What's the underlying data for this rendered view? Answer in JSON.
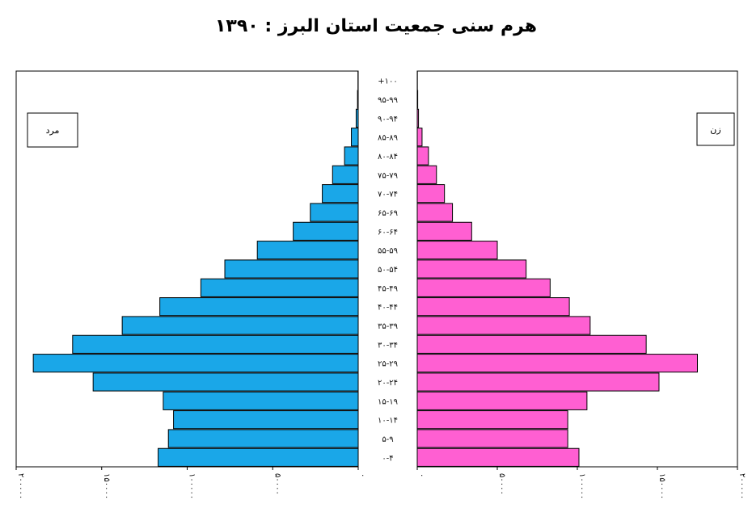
{
  "chart_data": {
    "type": "bar",
    "title": "هرم سنی جمعیت استان البرز : ۱۳۹۰",
    "categories": [
      "۰-۴",
      "۵-۹",
      "۱۰-۱۴",
      "۱۵-۱۹",
      "۲۰-۲۴",
      "۲۵-۲۹",
      "۳۰-۳۴",
      "۳۵-۳۹",
      "۴۰-۴۴",
      "۴۵-۴۹",
      "۵۰-۵۴",
      "۵۵-۵۹",
      "۶۰-۶۴",
      "۶۵-۶۹",
      "۷۰-۷۴",
      "۷۵-۷۹",
      "۸۰-۸۴",
      "۸۵-۸۹",
      "۹۰-۹۴",
      "۹۵-۹۹",
      "+۱۰۰"
    ],
    "series": [
      {
        "name": "مرد",
        "color": "#1aa7e8",
        "values": [
          117000,
          111000,
          108000,
          114000,
          155000,
          190000,
          167000,
          138000,
          116000,
          92000,
          78000,
          59000,
          38000,
          28000,
          21000,
          15000,
          8000,
          4000,
          1200,
          400,
          150
        ]
      },
      {
        "name": "زن",
        "color": "#ff5fd2",
        "values": [
          101000,
          94000,
          94000,
          106000,
          151000,
          175000,
          143000,
          108000,
          95000,
          83000,
          68000,
          50000,
          34000,
          22000,
          17000,
          12000,
          7000,
          3000,
          800,
          300,
          100
        ]
      }
    ],
    "xlim": [
      0,
      200000
    ],
    "x_ticks_left": [
      "۲۰۰۰۰۰",
      "۱۵۰۰۰۰",
      "۱۰۰۰۰۰",
      "۵۰۰۰۰",
      "۰"
    ],
    "x_ticks_right": [
      "۰",
      "۵۰۰۰۰",
      "۱۰۰۰۰۰",
      "۱۵۰۰۰۰",
      "۲۰۰۰۰۰"
    ],
    "legend": {
      "left": "مرد",
      "right": "زن"
    },
    "grid": false
  }
}
